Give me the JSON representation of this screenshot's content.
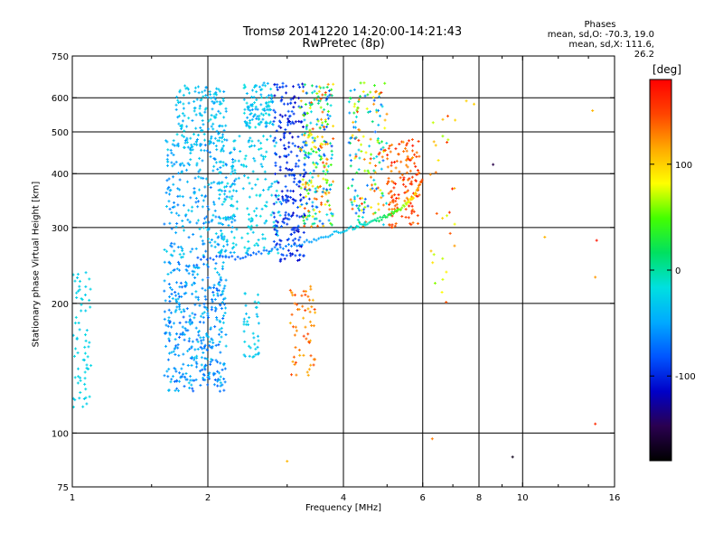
{
  "chart_data": {
    "type": "scatter",
    "title": "Tromsø 20141220 14:20:00-14:21:43",
    "subtitle": "RwPretec (8p)",
    "xlabel": "Frequency [MHz]",
    "ylabel": "Stationary phase Virtual Height [km]",
    "x_scale": "log",
    "y_scale": "log",
    "xlim": [
      1,
      16
    ],
    "ylim": [
      75,
      750
    ],
    "x_ticks": [
      "1",
      "2",
      "4",
      "6",
      "8",
      "10",
      "16"
    ],
    "y_ticks": [
      "75",
      "100",
      "200",
      "300",
      "400",
      "500",
      "600",
      "750"
    ],
    "grid": true,
    "stats": {
      "heading": "Phases",
      "line_o": "mean, sd,O: -70.3, 19.0",
      "line_x": "mean, sd,X: 111.6, 26.2"
    },
    "colorbar": {
      "label": "[deg]",
      "ticks": [
        "100",
        "0",
        "-100"
      ],
      "range": [
        -180,
        180
      ],
      "colors": [
        "#000000",
        "#2a0050",
        "#0000c8",
        "#0055ff",
        "#00aaff",
        "#00e0e0",
        "#00e060",
        "#44ff00",
        "#ffff00",
        "#ffaa00",
        "#ff4400",
        "#ff0000"
      ]
    },
    "clusters": [
      {
        "f": [
          1.0,
          1.1
        ],
        "h": [
          110,
          240
        ],
        "phase": [
          -20,
          -30
        ],
        "n": 70
      },
      {
        "f": [
          1.6,
          2.2
        ],
        "h": [
          125,
          250
        ],
        "phase": [
          -80,
          -30
        ],
        "n": 380
      },
      {
        "f": [
          1.6,
          2.3
        ],
        "h": [
          255,
          480
        ],
        "phase": [
          -70,
          -25
        ],
        "n": 260
      },
      {
        "f": [
          1.7,
          2.2
        ],
        "h": [
          450,
          640
        ],
        "phase": [
          -55,
          -20
        ],
        "n": 150
      },
      {
        "f": [
          2.4,
          2.8
        ],
        "h": [
          510,
          650
        ],
        "phase": [
          -55,
          -15
        ],
        "n": 110
      },
      {
        "f": [
          2.1,
          2.9
        ],
        "h": [
          260,
          490
        ],
        "phase": [
          -40,
          -15
        ],
        "n": 180
      },
      {
        "f": [
          2.8,
          3.3
        ],
        "h": [
          250,
          650
        ],
        "phase": [
          -120,
          -75
        ],
        "n": 250
      },
      {
        "f": [
          3.2,
          3.8
        ],
        "h": [
          300,
          650
        ],
        "phase": [
          -100,
          150
        ],
        "n": 250
      },
      {
        "f": [
          4.1,
          5.0
        ],
        "h": [
          300,
          650
        ],
        "phase": [
          -80,
          160
        ],
        "n": 170
      },
      {
        "f": [
          5.0,
          5.9
        ],
        "h": [
          300,
          480
        ],
        "phase": [
          120,
          170
        ],
        "n": 140
      },
      {
        "f": [
          3.0,
          3.5
        ],
        "h": [
          135,
          220
        ],
        "phase": [
          110,
          150
        ],
        "n": 60
      },
      {
        "f": [
          2.4,
          2.6
        ],
        "h": [
          150,
          220
        ],
        "phase": [
          -40,
          -20
        ],
        "n": 40
      },
      {
        "f": [
          6.2,
          7.2
        ],
        "h": [
          200,
          560
        ],
        "phase": [
          60,
          170
        ],
        "n": 30
      }
    ],
    "trace": {
      "points": [
        [
          1.9,
          255
        ],
        [
          2.3,
          255
        ],
        [
          2.7,
          265
        ],
        [
          3.2,
          275
        ],
        [
          3.7,
          288
        ],
        [
          4.2,
          300
        ],
        [
          4.7,
          310
        ],
        [
          5.1,
          322
        ],
        [
          5.5,
          338
        ],
        [
          5.8,
          360
        ],
        [
          6.0,
          390
        ]
      ],
      "phase_start": -80,
      "phase_end": 150
    },
    "outliers": [
      {
        "f": 8.6,
        "h": 420,
        "phase": -150
      },
      {
        "f": 7.5,
        "h": 590,
        "phase": 100
      },
      {
        "f": 9.5,
        "h": 88,
        "phase": -170
      },
      {
        "f": 14.5,
        "h": 105,
        "phase": 160
      },
      {
        "f": 11.2,
        "h": 285,
        "phase": 110
      },
      {
        "f": 14.3,
        "h": 560,
        "phase": 110
      },
      {
        "f": 14.5,
        "h": 230,
        "phase": 120
      },
      {
        "f": 14.6,
        "h": 280,
        "phase": 170
      },
      {
        "f": 6.3,
        "h": 97,
        "phase": 130
      },
      {
        "f": 3.0,
        "h": 86,
        "phase": 110
      },
      {
        "f": 7.8,
        "h": 580,
        "phase": 100
      }
    ]
  }
}
